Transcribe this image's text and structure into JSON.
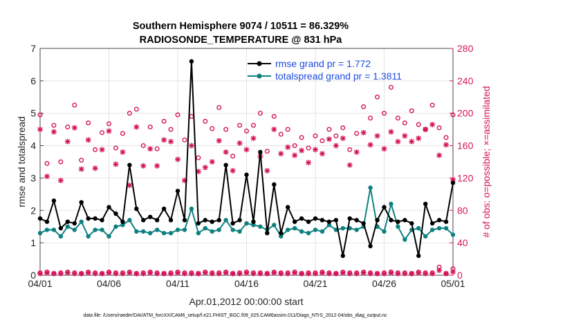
{
  "chart_data": {
    "type": "line",
    "title": "Southern Hemisphere 9074 / 10511 = 86.329%",
    "subtitle": "RADIOSONDE_TEMPERATURE @ 831 hPa",
    "xlabel": "Apr.01,2012 00:00:00 start",
    "ylabel": "rmse and totalspread",
    "ylabel_right": "# of obs: o=possible; ×=assimilated",
    "footer": "data file: /Users/raeder/DAI/ATM_forcXX/CAM6_setup/f.e21.FHIST_BGC.f09_025.CAM6assim.011/Diags_NTrS_2012-04/obs_diag_output.nc",
    "xlim": [
      0,
      30
    ],
    "ylim": [
      0,
      7
    ],
    "ylim_right": [
      0,
      280
    ],
    "xticks": [
      0,
      5,
      10,
      15,
      20,
      25,
      30
    ],
    "xtick_labels": [
      "04/01",
      "04/06",
      "04/11",
      "04/16",
      "04/21",
      "04/26",
      "05/01"
    ],
    "yticks": [
      0,
      1,
      2,
      3,
      4,
      5,
      6,
      7
    ],
    "yticks_right": [
      0,
      40,
      80,
      120,
      160,
      200,
      240,
      280
    ],
    "grid": true,
    "colors": {
      "rmse": "#000000",
      "spread": "#0e8080",
      "obs": "#d4145a",
      "legend_text": "#1a4be0"
    },
    "series": [
      {
        "name": "rmse grand pr = 1.772",
        "axis": "left",
        "x": [
          0,
          0.5,
          1,
          1.5,
          2,
          2.5,
          3,
          3.5,
          4,
          4.5,
          5,
          5.5,
          6,
          6.5,
          7,
          7.5,
          8,
          8.5,
          9,
          9.5,
          10,
          10.5,
          11,
          11.5,
          12,
          12.5,
          13,
          13.5,
          14,
          14.5,
          15,
          15.5,
          16,
          16.5,
          17,
          17.5,
          18,
          18.5,
          19,
          19.5,
          20,
          20.5,
          21,
          21.5,
          22,
          22.5,
          23,
          23.5,
          24,
          24.5,
          25,
          25.5,
          26,
          26.5,
          27,
          27.5,
          28,
          28.5,
          29,
          29.5,
          30
        ],
        "values": [
          1.75,
          1.65,
          2.3,
          1.45,
          1.65,
          1.6,
          2.25,
          1.75,
          1.75,
          1.7,
          2.1,
          1.9,
          1.65,
          3.4,
          2.05,
          1.7,
          1.8,
          1.7,
          2.05,
          1.7,
          2.6,
          1.7,
          6.6,
          1.6,
          1.7,
          1.65,
          1.7,
          3.4,
          1.6,
          1.7,
          3.1,
          1.65,
          3.8,
          1.3,
          2.8,
          1.3,
          2.1,
          1.65,
          1.75,
          1.65,
          1.75,
          1.7,
          1.65,
          1.7,
          0.6,
          1.75,
          1.7,
          1.6,
          0.9,
          1.7,
          2.1,
          1.7,
          1.65,
          1.7,
          1.6,
          0.6,
          2.2,
          1.6,
          1.7,
          1.65,
          2.85
        ]
      },
      {
        "name": "totalspread grand pr = 1.3811",
        "axis": "left",
        "x": [
          0,
          0.5,
          1,
          1.5,
          2,
          2.5,
          3,
          3.5,
          4,
          4.5,
          5,
          5.5,
          6,
          6.5,
          7,
          7.5,
          8,
          8.5,
          9,
          9.5,
          10,
          10.5,
          11,
          11.5,
          12,
          12.5,
          13,
          13.5,
          14,
          14.5,
          15,
          15.5,
          16,
          16.5,
          17,
          17.5,
          18,
          18.5,
          19,
          19.5,
          20,
          20.5,
          21,
          21.5,
          22,
          22.5,
          23,
          23.5,
          24,
          24.5,
          25,
          25.5,
          26,
          26.5,
          27,
          27.5,
          28,
          28.5,
          29,
          29.5,
          30
        ],
        "values": [
          1.3,
          1.4,
          1.4,
          1.2,
          1.5,
          1.4,
          1.65,
          1.2,
          1.4,
          1.4,
          1.2,
          1.5,
          1.55,
          1.7,
          1.35,
          1.35,
          1.3,
          1.4,
          1.3,
          1.3,
          1.4,
          1.4,
          2.05,
          1.3,
          1.45,
          1.35,
          1.4,
          1.7,
          1.4,
          1.35,
          1.6,
          1.55,
          1.5,
          1.4,
          1.55,
          1.2,
          1.4,
          1.45,
          1.35,
          1.3,
          1.4,
          1.35,
          1.55,
          1.4,
          1.45,
          1.45,
          1.4,
          1.5,
          2.7,
          1.5,
          1.35,
          2.2,
          1.5,
          1.1,
          1.4,
          1.45,
          1.2,
          1.4,
          1.45,
          1.45,
          1.25
        ]
      },
      {
        "name": "possible",
        "axis": "right",
        "marker": "o",
        "x": [
          0,
          0.5,
          1,
          1.5,
          2,
          2.5,
          3,
          3.5,
          4,
          4.5,
          5,
          5.5,
          6,
          6.5,
          7,
          7.5,
          8,
          8.5,
          9,
          9.5,
          10,
          10.5,
          11,
          11.5,
          12,
          12.5,
          13,
          13.5,
          14,
          14.5,
          15,
          15.5,
          16,
          16.5,
          17,
          17.5,
          18,
          18.5,
          19,
          19.5,
          20,
          20.5,
          21,
          21.5,
          22,
          22.5,
          23,
          23.5,
          24,
          24.5,
          25,
          25.5,
          26,
          26.5,
          27,
          27.5,
          28,
          28.5,
          29,
          29.5,
          30
        ],
        "values": [
          198,
          138,
          185,
          140,
          183,
          210,
          142,
          188,
          155,
          176,
          187,
          157,
          175,
          200,
          205,
          160,
          183,
          156,
          190,
          180,
          198,
          167,
          196,
          145,
          190,
          181,
          207,
          180,
          147,
          185,
          178,
          185,
          200,
          153,
          196,
          174,
          180,
          160,
          170,
          157,
          172,
          166,
          180,
          172,
          182,
          155,
          175,
          208,
          194,
          220,
          200,
          232,
          194,
          188,
          203,
          186,
          180,
          210,
          182,
          170,
          198
        ]
      },
      {
        "name": "assimilated",
        "axis": "right",
        "marker": "x",
        "x": [
          0,
          0.5,
          1,
          1.5,
          2,
          2.5,
          3,
          3.5,
          4,
          4.5,
          5,
          5.5,
          6,
          6.5,
          7,
          7.5,
          8,
          8.5,
          9,
          9.5,
          10,
          10.5,
          11,
          11.5,
          12,
          12.5,
          13,
          13.5,
          14,
          14.5,
          15,
          15.5,
          16,
          16.5,
          17,
          17.5,
          18,
          18.5,
          19,
          19.5,
          20,
          20.5,
          21,
          21.5,
          22,
          22.5,
          23,
          23.5,
          24,
          24.5,
          25,
          25.5,
          26,
          26.5,
          27,
          27.5,
          28,
          28.5,
          29,
          29.5,
          30
        ],
        "values": [
          180,
          122,
          177,
          117,
          165,
          182,
          131,
          167,
          132,
          155,
          178,
          137,
          152,
          111,
          183,
          135,
          156,
          135,
          167,
          165,
          143,
          117,
          160,
          128,
          133,
          140,
          166,
          152,
          129,
          163,
          155,
          169,
          147,
          129,
          180,
          150,
          158,
          148,
          154,
          139,
          155,
          150,
          168,
          160,
          169,
          136,
          152,
          176,
          161,
          172,
          156,
          177,
          165,
          172,
          165,
          169,
          180,
          186,
          148,
          161,
          118
        ]
      },
      {
        "name": "possible-bottom",
        "axis": "right",
        "marker": "o",
        "x": [
          0,
          0.5,
          1,
          1.5,
          2,
          2.5,
          3,
          3.5,
          4,
          4.5,
          5,
          5.5,
          6,
          6.5,
          7,
          7.5,
          8,
          8.5,
          9,
          9.5,
          10,
          10.5,
          11,
          11.5,
          12,
          12.5,
          13,
          13.5,
          14,
          14.5,
          15,
          15.5,
          16,
          16.5,
          17,
          17.5,
          18,
          18.5,
          19,
          19.5,
          20,
          20.5,
          21,
          21.5,
          22,
          22.5,
          23,
          23.5,
          24,
          24.5,
          25,
          25.5,
          26,
          26.5,
          27,
          27.5,
          28,
          28.5,
          29,
          29.5,
          30
        ],
        "values": [
          3,
          4,
          2,
          3,
          4,
          3,
          2,
          4,
          3,
          2,
          4,
          3,
          3,
          4,
          2,
          3,
          4,
          3,
          2,
          3,
          4,
          3,
          3,
          2,
          4,
          3,
          3,
          4,
          2,
          3,
          4,
          3,
          3,
          2,
          4,
          3,
          3,
          4,
          2,
          3,
          3,
          4,
          3,
          2,
          4,
          3,
          3,
          4,
          3,
          2,
          3,
          4,
          3,
          3,
          2,
          4,
          3,
          3,
          10,
          2,
          8
        ]
      },
      {
        "name": "assimilated-bottom",
        "axis": "right",
        "marker": "x",
        "x": [
          0,
          0.5,
          1,
          1.5,
          2,
          2.5,
          3,
          3.5,
          4,
          4.5,
          5,
          5.5,
          6,
          6.5,
          7,
          7.5,
          8,
          8.5,
          9,
          9.5,
          10,
          10.5,
          11,
          11.5,
          12,
          12.5,
          13,
          13.5,
          14,
          14.5,
          15,
          15.5,
          16,
          16.5,
          17,
          17.5,
          18,
          18.5,
          19,
          19.5,
          20,
          20.5,
          21,
          21.5,
          22,
          22.5,
          23,
          23.5,
          24,
          24.5,
          25,
          25.5,
          26,
          26.5,
          27,
          27.5,
          28,
          28.5,
          29,
          29.5,
          30
        ],
        "values": [
          2,
          3,
          2,
          2,
          3,
          2,
          2,
          3,
          2,
          2,
          3,
          2,
          2,
          3,
          2,
          2,
          3,
          2,
          2,
          2,
          3,
          2,
          2,
          2,
          3,
          2,
          2,
          3,
          2,
          2,
          3,
          2,
          2,
          2,
          3,
          2,
          2,
          3,
          2,
          2,
          2,
          3,
          2,
          2,
          3,
          2,
          2,
          3,
          2,
          2,
          2,
          3,
          2,
          2,
          2,
          3,
          2,
          2,
          6,
          2,
          4
        ]
      }
    ],
    "legend": [
      {
        "label": "rmse grand pr = 1.772",
        "series": 0
      },
      {
        "label": "totalspread grand pr = 1.3811",
        "series": 1
      }
    ],
    "legend_position": "top-right"
  }
}
